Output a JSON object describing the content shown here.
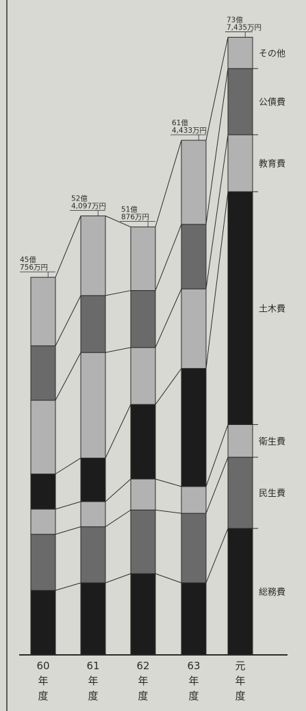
{
  "chart_data": {
    "type": "bar",
    "stacked": true,
    "title": "",
    "xlabel": "",
    "ylabel": "",
    "y_axis_shown": false,
    "categories": [
      [
        "60",
        "年",
        "度"
      ],
      [
        "61",
        "年",
        "度"
      ],
      [
        "62",
        "年",
        "度"
      ],
      [
        "63",
        "年",
        "度"
      ],
      [
        "元",
        "年",
        "度"
      ]
    ],
    "totals": [
      [
        "45億",
        "756万円"
      ],
      [
        "52億",
        "4,097万円"
      ],
      [
        "51億",
        "876万円"
      ],
      [
        "61億",
        "4,433万円"
      ],
      [
        "73億",
        "7,435万円"
      ]
    ],
    "total_values": [
      45.08,
      52.41,
      51.09,
      61.44,
      73.74
    ],
    "series": [
      {
        "name": "総務費",
        "color": "#1c1c1c",
        "values": [
          7.7,
          8.6,
          9.7,
          8.6,
          15.1
        ]
      },
      {
        "name": "民生費",
        "color": "#6a6a6a",
        "values": [
          6.7,
          6.7,
          7.6,
          8.3,
          8.5
        ]
      },
      {
        "name": "衛生費",
        "color": "#b2b2b2",
        "values": [
          3.0,
          3.0,
          3.7,
          3.2,
          3.9
        ]
      },
      {
        "name": "土木費",
        "color": "#1c1c1c",
        "values": [
          4.2,
          5.2,
          8.9,
          14.1,
          27.8
        ]
      },
      {
        "name": "教育費",
        "color": "#b2b2b2",
        "values": [
          8.8,
          12.6,
          6.8,
          9.5,
          6.8
        ]
      },
      {
        "name": "公債費",
        "color": "#6a6a6a",
        "values": [
          6.5,
          6.8,
          6.8,
          7.7,
          7.9
        ]
      },
      {
        "name": "その他",
        "color": "#b2b2b2",
        "values": [
          8.18,
          9.51,
          7.59,
          10.04,
          3.74
        ]
      }
    ],
    "legend_placement": "right",
    "bar_stroke": "#2a2a2a",
    "line_color": "#2a2a2a"
  }
}
